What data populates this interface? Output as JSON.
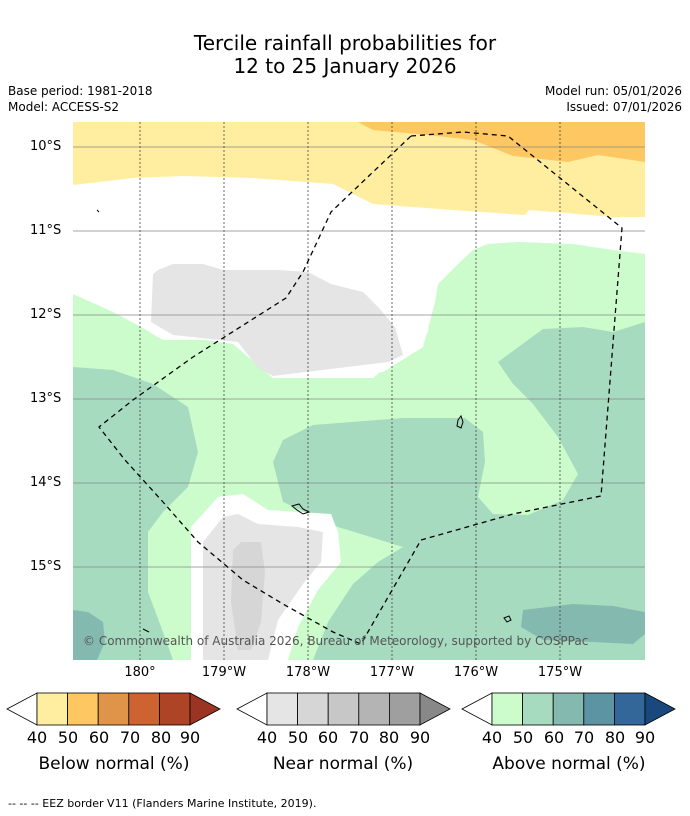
{
  "title": {
    "line1": "Tercile rainfall probabilities for",
    "line2": "12 to 25 January 2026"
  },
  "meta": {
    "base_period": "Base period: 1981-2018",
    "model": "Model: ACCESS-S2",
    "model_run": "Model run: 05/01/2026",
    "issued": "Issued: 07/01/2026"
  },
  "axes": {
    "lat_labels": [
      "10°S",
      "11°S",
      "12°S",
      "13°S",
      "14°S",
      "15°S"
    ],
    "lon_labels": [
      "180°",
      "179°W",
      "178°W",
      "177°W",
      "176°W",
      "175°W"
    ]
  },
  "copyright": "© Commonwealth of Australia 2026, Bureau of Meteorology, supported by COSPPac",
  "legends": [
    {
      "caption": "Below normal (%)",
      "ticks": [
        "40",
        "50",
        "60",
        "70",
        "80",
        "90"
      ],
      "colors": [
        "#ffeea0",
        "#fec761",
        "#e0944a",
        "#cc6331",
        "#ad4426",
        "#9b3422"
      ]
    },
    {
      "caption": "Near normal (%)",
      "ticks": [
        "40",
        "50",
        "60",
        "70",
        "80",
        "90"
      ],
      "colors": [
        "#e5e5e5",
        "#d6d6d6",
        "#c7c7c7",
        "#b4b4b4",
        "#9f9f9f",
        "#888888"
      ]
    },
    {
      "caption": "Above normal (%)",
      "ticks": [
        "40",
        "50",
        "60",
        "70",
        "80",
        "90"
      ],
      "colors": [
        "#ccfccc",
        "#a7dbbf",
        "#84b9af",
        "#5d94a4",
        "#336699",
        "#18487c"
      ]
    }
  ],
  "footnote": "-- -- -- EEZ border V11 (Flanders Marine Institute, 2019)."
}
